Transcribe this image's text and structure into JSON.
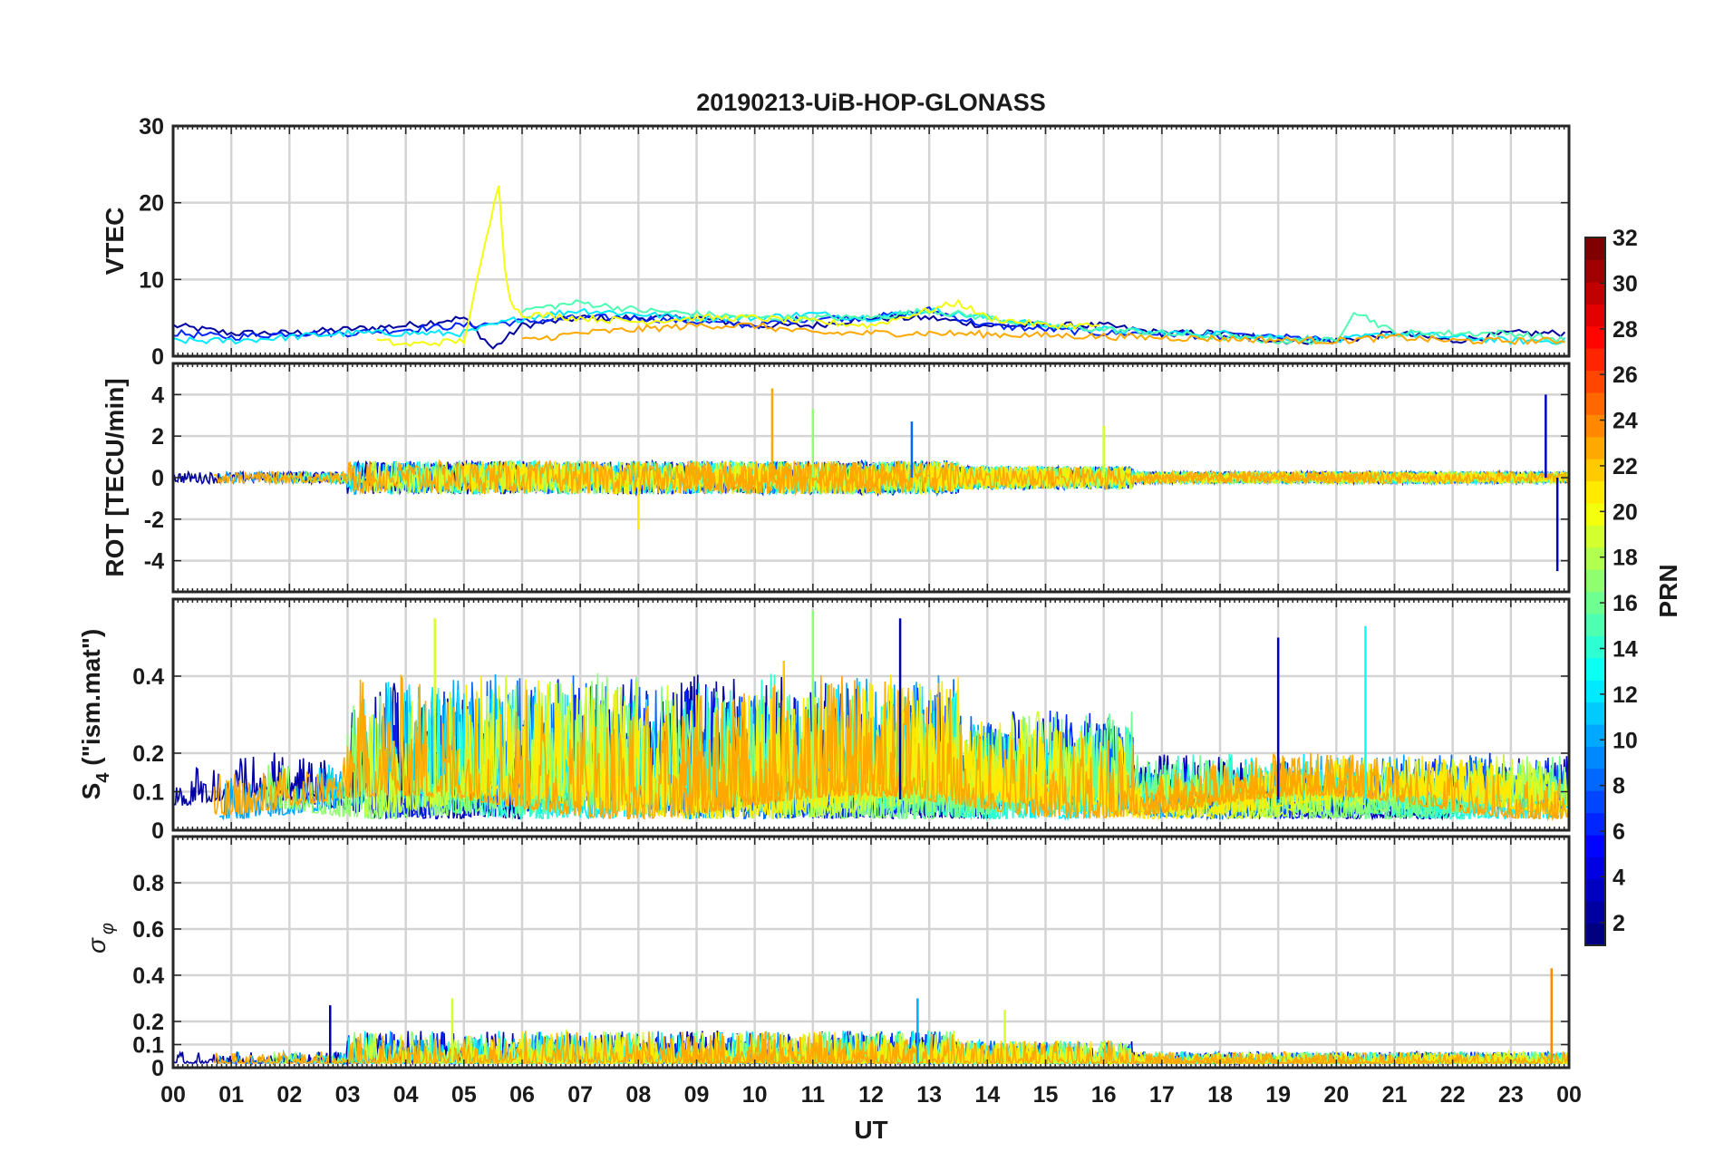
{
  "title": "20190213-UiB-HOP-GLONASS",
  "xlabel": "UT",
  "x_tick_labels": [
    "00",
    "01",
    "02",
    "03",
    "04",
    "05",
    "06",
    "07",
    "08",
    "09",
    "10",
    "11",
    "12",
    "13",
    "14",
    "15",
    "16",
    "17",
    "18",
    "19",
    "20",
    "21",
    "22",
    "23",
    "00"
  ],
  "panels": [
    {
      "id": "vtec",
      "ylabel": "VTEC",
      "ylim": [
        0,
        30
      ],
      "ytick_labels": [
        "0",
        "10",
        "20",
        "30"
      ]
    },
    {
      "id": "rot",
      "ylabel": "ROT [TECU/min]",
      "ylim": [
        -5.5,
        5.5
      ],
      "ytick_labels": [
        "-4",
        "-2",
        "0",
        "2",
        "4"
      ]
    },
    {
      "id": "s4",
      "ylabel_main": "S",
      "ylabel_sub": "4",
      "ylabel_rest": " (\"ism.mat\")",
      "ylim": [
        0,
        0.6
      ],
      "ytick_labels": [
        "0",
        "0.1",
        "0.2",
        "0.4"
      ]
    },
    {
      "id": "sigma",
      "ylabel_main": "σ",
      "ylabel_sub": "φ",
      "ylim": [
        0,
        1.0
      ],
      "ytick_labels": [
        "0",
        "0.1",
        "0.2",
        "0.4",
        "0.6",
        "0.8"
      ]
    }
  ],
  "colorbar": {
    "label": "PRN",
    "range": [
      1,
      32
    ],
    "tick_labels": [
      "2",
      "4",
      "6",
      "8",
      "10",
      "12",
      "14",
      "16",
      "18",
      "20",
      "22",
      "24",
      "26",
      "28",
      "30",
      "32"
    ],
    "colormap": "jet"
  },
  "chart_data": {
    "type": "line",
    "title": "20190213-UiB-HOP-GLONASS",
    "xlabel": "UT",
    "xlim": [
      0,
      24
    ],
    "x_unit": "hours UT",
    "grid": true,
    "colorbar": "PRN (1-32, jet colormap)",
    "panels": [
      {
        "ylabel": "VTEC",
        "ylim": [
          0,
          30
        ],
        "series": [
          {
            "prn": 2,
            "x": [
              0,
              1,
              2,
              3,
              4,
              5,
              5.5,
              6,
              7,
              8,
              9,
              10,
              11,
              12,
              13,
              14,
              15,
              16,
              17,
              18,
              19,
              20,
              21,
              22,
              23,
              24
            ],
            "y": [
              4,
              3,
              3,
              3.5,
              4,
              5,
              1,
              4,
              5,
              5,
              5,
              4,
              4,
              5,
              5,
              4,
              4,
              4,
              3,
              3,
              2,
              2,
              3,
              2,
              3,
              3
            ]
          },
          {
            "prn": 6,
            "x": [
              0,
              1,
              2,
              3,
              4,
              5,
              6,
              7,
              8,
              9,
              10,
              11,
              12,
              13,
              14,
              15,
              16,
              17,
              18,
              19,
              20
            ],
            "y": [
              3,
              2.5,
              3,
              3,
              3.5,
              4,
              4.5,
              5,
              5,
              4.5,
              4,
              5,
              5,
              6,
              4,
              3.5,
              3,
              3,
              2.5,
              2.5,
              2
            ]
          },
          {
            "prn": 12,
            "x": [
              0,
              1,
              2,
              3,
              4,
              5,
              6,
              7,
              8,
              9,
              10,
              11,
              12,
              13,
              14,
              15,
              16,
              17,
              18,
              19,
              20,
              21,
              22,
              23,
              24
            ],
            "y": [
              2,
              2,
              2.5,
              3,
              3,
              3,
              5,
              6,
              5.5,
              5,
              5,
              5.5,
              5,
              6,
              5,
              4,
              3.5,
              3,
              3,
              2.5,
              2,
              3,
              2.5,
              2,
              2
            ]
          },
          {
            "prn": 15,
            "x": [
              6,
              7,
              8,
              9,
              10,
              11,
              12,
              13,
              14,
              15,
              16,
              17,
              18,
              19,
              20,
              20.3,
              21,
              22,
              23,
              24
            ],
            "y": [
              6,
              7,
              6,
              5.5,
              5,
              5,
              5,
              6,
              5,
              4,
              3.5,
              3,
              2.5,
              2,
              2,
              6,
              3,
              3,
              3,
              2
            ]
          },
          {
            "prn": 20,
            "x": [
              3.5,
              4,
              5,
              5.6,
              5.7,
              5.8,
              6,
              7,
              8,
              9,
              10,
              11,
              12,
              13,
              13.5,
              14,
              15,
              16
            ],
            "y": [
              2,
              1.5,
              2,
              22.5,
              12,
              7,
              5.5,
              5,
              4.5,
              5,
              5,
              4.5,
              4,
              6,
              7,
              5,
              4,
              4
            ]
          },
          {
            "prn": 23,
            "x": [
              6,
              7,
              8,
              9,
              10,
              11,
              12,
              13,
              20,
              21,
              22,
              23,
              24
            ],
            "y": [
              2,
              3,
              3.5,
              4,
              4,
              3,
              3,
              3,
              2,
              2.5,
              2,
              2,
              2
            ]
          }
        ]
      },
      {
        "ylabel": "ROT [TECU/min]",
        "ylim": [
          -5.5,
          5.5
        ],
        "peaks": [
          {
            "prn": 23,
            "x": 10.3,
            "y": 4.3
          },
          {
            "prn": 17,
            "x": 11.0,
            "y": 3.3
          },
          {
            "prn": 8,
            "x": 12.7,
            "y": 2.7
          },
          {
            "prn": 19,
            "x": 16.0,
            "y": 2.5
          },
          {
            "prn": 21,
            "x": 8.0,
            "y": -2.5
          },
          {
            "prn": 3,
            "x": 23.6,
            "y": 4.0
          },
          {
            "prn": 3,
            "x": 23.8,
            "y": -4.5
          }
        ]
      },
      {
        "ylabel": "S4 (\"ism.mat\")",
        "ylim": [
          0,
          0.6
        ],
        "peaks": [
          {
            "prn": 19,
            "x": 4.5,
            "y": 0.55
          },
          {
            "prn": 17,
            "x": 11.0,
            "y": 0.57
          },
          {
            "prn": 2,
            "x": 12.5,
            "y": 0.55
          },
          {
            "prn": 13,
            "x": 20.5,
            "y": 0.53
          },
          {
            "prn": 3,
            "x": 19.0,
            "y": 0.5
          },
          {
            "prn": 22,
            "x": 10.5,
            "y": 0.44
          }
        ]
      },
      {
        "ylabel": "σφ",
        "ylim": [
          0,
          1.0
        ],
        "peaks": [
          {
            "prn": 24,
            "x": 23.7,
            "y": 0.43
          },
          {
            "prn": 19,
            "x": 4.8,
            "y": 0.3
          },
          {
            "prn": 10,
            "x": 12.8,
            "y": 0.3
          },
          {
            "prn": 2,
            "x": 2.7,
            "y": 0.27
          },
          {
            "prn": 19,
            "x": 14.3,
            "y": 0.25
          }
        ]
      }
    ]
  }
}
